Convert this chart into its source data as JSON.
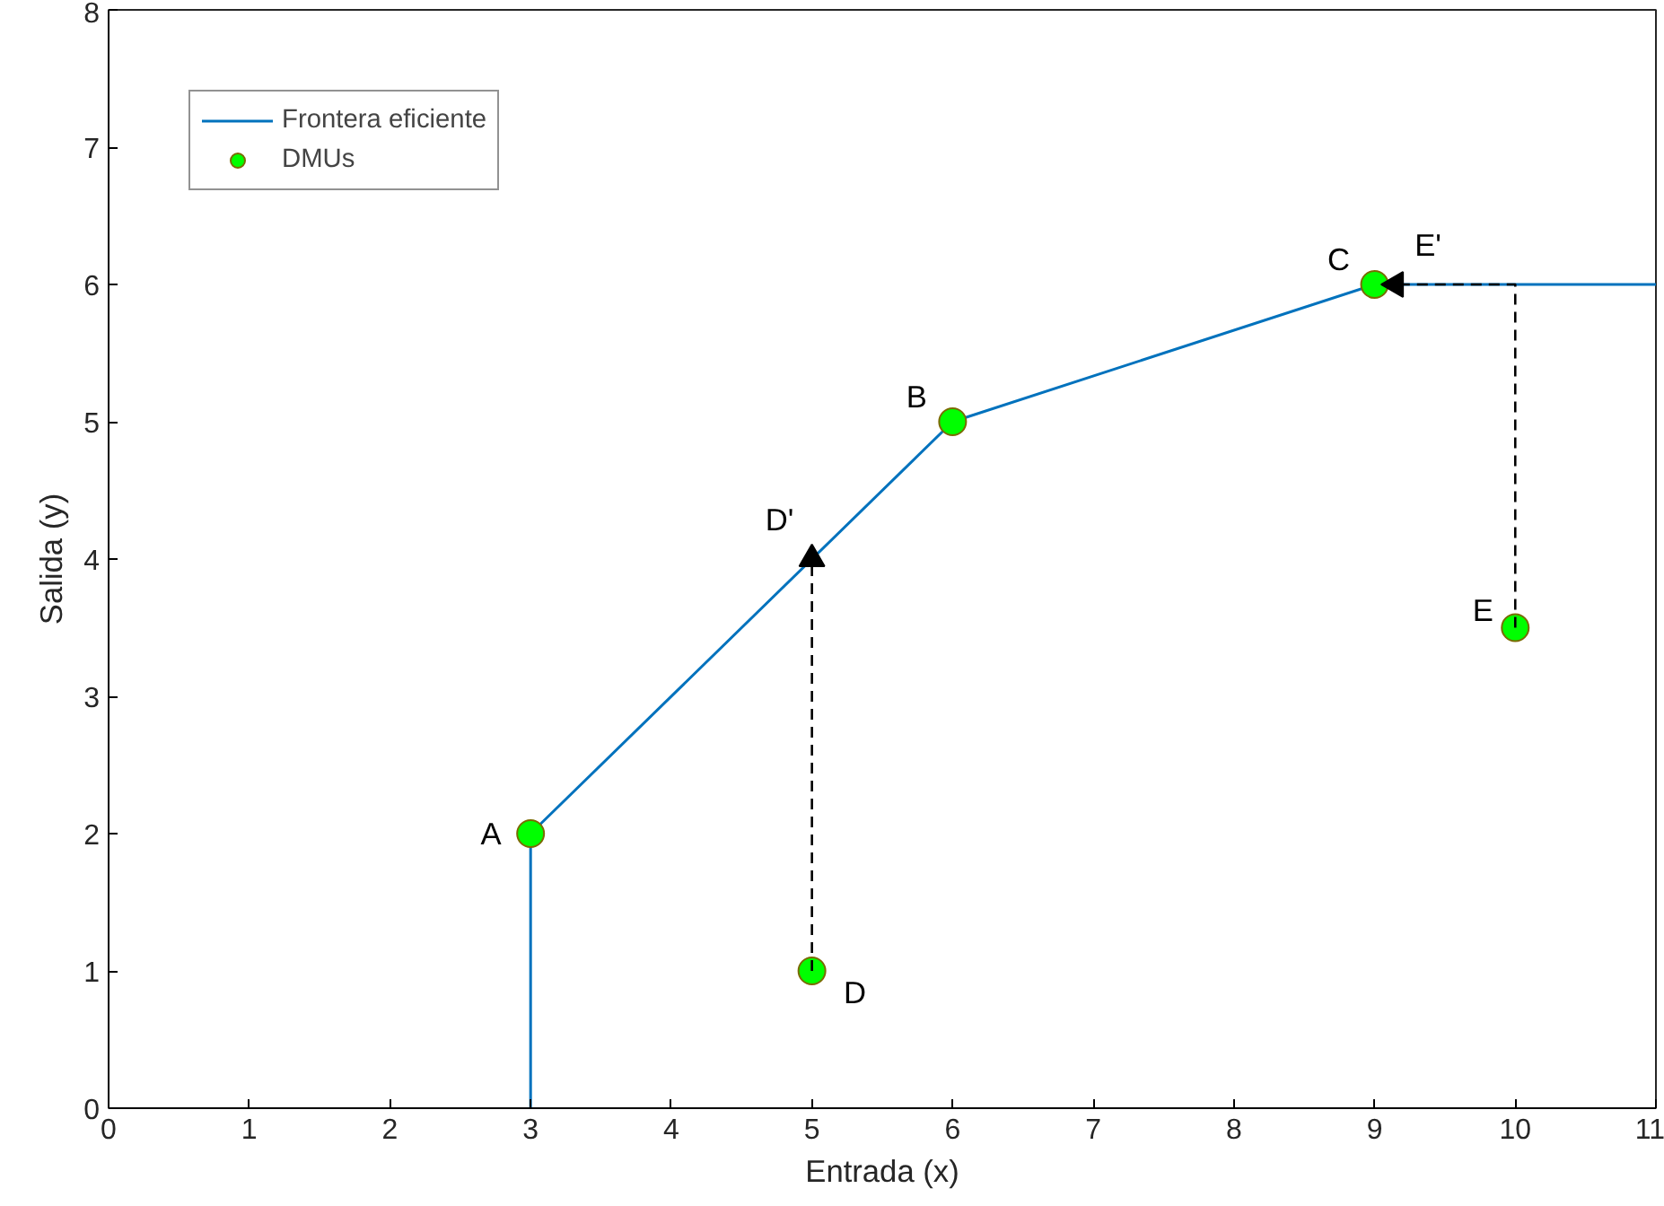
{
  "chart_data": {
    "type": "line",
    "xlabel": "Entrada (x)",
    "ylabel": "Salida (y)",
    "xlim": [
      0,
      11
    ],
    "ylim": [
      0,
      8
    ],
    "xticks": [
      0,
      1,
      2,
      3,
      4,
      5,
      6,
      7,
      8,
      9,
      10,
      11
    ],
    "yticks": [
      0,
      1,
      2,
      3,
      4,
      5,
      6,
      7,
      8
    ],
    "grid": false,
    "legend": "top left",
    "series": [
      {
        "name": "Frontera eficiente",
        "color": "#0072bd",
        "x": [
          3,
          3,
          6,
          9,
          11
        ],
        "values": [
          0,
          2,
          5,
          6,
          6
        ],
        "marker": "none",
        "line_style": "solid"
      },
      {
        "name": "DMUs",
        "type": "scatter",
        "color": "#00ff00",
        "x": [
          3,
          6,
          9,
          5,
          10
        ],
        "values": [
          2,
          5,
          6,
          1,
          3.5
        ],
        "marker": "circle"
      },
      {
        "color": "#000000",
        "x": [
          5,
          5
        ],
        "values": [
          1,
          4
        ],
        "line_style": "dashed"
      },
      {
        "color": "#000000",
        "x": [
          10,
          10,
          9.15
        ],
        "values": [
          3.5,
          6,
          6
        ],
        "line_style": "dashed"
      }
    ],
    "annotations": [
      {
        "text": "A",
        "x": 3,
        "y": 2
      },
      {
        "text": "B",
        "x": 6,
        "y": 5
      },
      {
        "text": "C",
        "x": 9,
        "y": 6
      },
      {
        "text": "D",
        "x": 5,
        "y": 1
      },
      {
        "text": "E",
        "x": 10,
        "y": 3.5
      },
      {
        "text": "D'",
        "x": 5,
        "y": 4
      },
      {
        "text": "E'",
        "x": 9.15,
        "y": 6
      }
    ]
  }
}
